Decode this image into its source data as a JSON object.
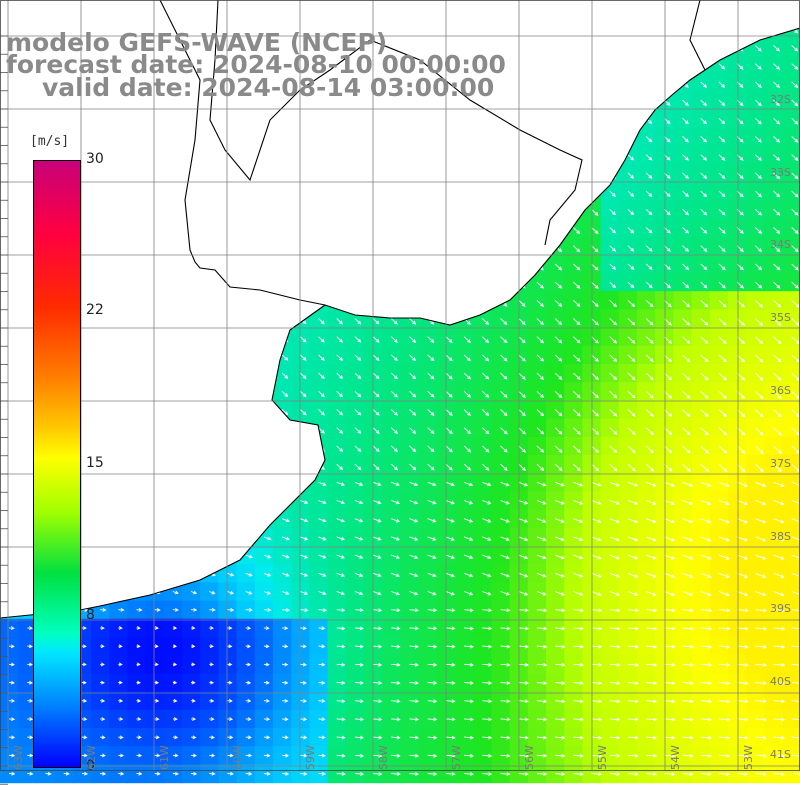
{
  "title": {
    "model": "modelo GEFS-WAVE (NCEP)",
    "forecast": "forecast date: 2024-08-10 00:00:00",
    "valid": "valid date: 2024-08-14 03:00:00"
  },
  "colorbar": {
    "unit": "[m/s]",
    "ticks": [
      "30",
      "22",
      "15",
      "8",
      "0"
    ],
    "range": [
      0,
      30
    ]
  },
  "lat_labels": [
    "32S",
    "33S",
    "34S",
    "35S",
    "36S",
    "37S",
    "38S",
    "39S",
    "40S",
    "41S"
  ],
  "lon_labels": [
    "63W",
    "62W",
    "61W",
    "60W",
    "59W",
    "58W",
    "57W",
    "56W",
    "55W",
    "54W",
    "53W"
  ],
  "colors": {
    "land": "#ffffff",
    "coast": "#000000",
    "grid": "#808080",
    "arrows": "#ffffff",
    "title_text": "#8a8a8a"
  }
}
